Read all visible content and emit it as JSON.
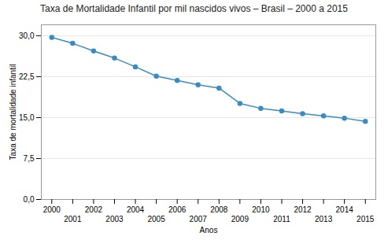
{
  "chart_data": {
    "type": "line",
    "title": "Taxa de Mortalidade Infantil por mil nascidos vivos – Brasil – 2000 a 2015",
    "xlabel": "Anos",
    "ylabel": "Taxa de mortalidade infantil",
    "x": [
      2000,
      2001,
      2002,
      2003,
      2004,
      2005,
      2006,
      2007,
      2008,
      2009,
      2010,
      2011,
      2012,
      2013,
      2014,
      2015
    ],
    "values": [
      29.7,
      28.6,
      27.2,
      25.9,
      24.3,
      22.6,
      21.8,
      21.0,
      20.4,
      17.6,
      16.7,
      16.2,
      15.7,
      15.3,
      14.9,
      14.3
    ],
    "color": "#3A8CC0",
    "marker": "circle",
    "xlim": [
      1999.5,
      2015.5
    ],
    "xticks": [
      2000,
      2001,
      2002,
      2003,
      2004,
      2005,
      2006,
      2007,
      2008,
      2009,
      2010,
      2011,
      2012,
      2013,
      2014,
      2015
    ],
    "ylim": [
      0,
      32
    ],
    "yticks": [
      {
        "value": 0.0,
        "label": "0,0"
      },
      {
        "value": 7.5,
        "label": "7,5"
      },
      {
        "value": 15.0,
        "label": "15,0"
      },
      {
        "value": 22.5,
        "label": "22,5"
      },
      {
        "value": 30.0,
        "label": "30,0"
      }
    ],
    "grid": true
  }
}
